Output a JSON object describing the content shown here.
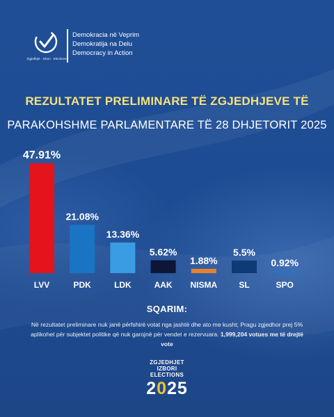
{
  "header": {
    "logo_caption": "Zgjedhjet · Izbori · Elections",
    "org_lines": [
      "Demokracia në Veprim",
      "Demokratija na Delu",
      "Democracy in Action"
    ]
  },
  "title": {
    "line1": "REZULTATET PRELIMINARE TË ZGJEDHJEVE TË",
    "line2": "PARAKOHSHME PARLAMENTARE TË 28 DHJETORIT 2025"
  },
  "chart_data": {
    "type": "bar",
    "categories": [
      "LVV",
      "PDK",
      "LDK",
      "AAK",
      "NISMA",
      "SL",
      "SPO"
    ],
    "values": [
      47.91,
      21.08,
      13.36,
      5.62,
      1.88,
      5.5,
      0.92
    ],
    "value_labels": [
      "47.91%",
      "21.08%",
      "13.36%",
      "5.62%",
      "1.88%",
      "5.5%",
      "0.92%"
    ],
    "colors": [
      "#e3141b",
      "#1a74c4",
      "#3a9ce3",
      "#0d1636",
      "#e8822e",
      "#0f3a78",
      "#2a74c0"
    ],
    "ylim": [
      0,
      47.91
    ],
    "grid": false,
    "legend": "none"
  },
  "note": {
    "title": "SQARIM:",
    "body_plain": "Në rezultatet preliminare nuk janë përfshirë votat nga jashtë dhe ato me kusht; Pragu zgjedhor prej 5% aplikohet për subjektet politike që nuk garojnë për vendet e rezervuara. ",
    "body_bold": "1,999,204 votues me të drejtë vote"
  },
  "footer": {
    "line1": "ZGJEDHJET",
    "line2": "IZBORI",
    "line3": "ELECTIONS",
    "year_a": "2",
    "year_b": "0",
    "year_c": "25"
  },
  "colors": {
    "accent_yellow": "#f6e27a",
    "background": "#1f4f97"
  }
}
